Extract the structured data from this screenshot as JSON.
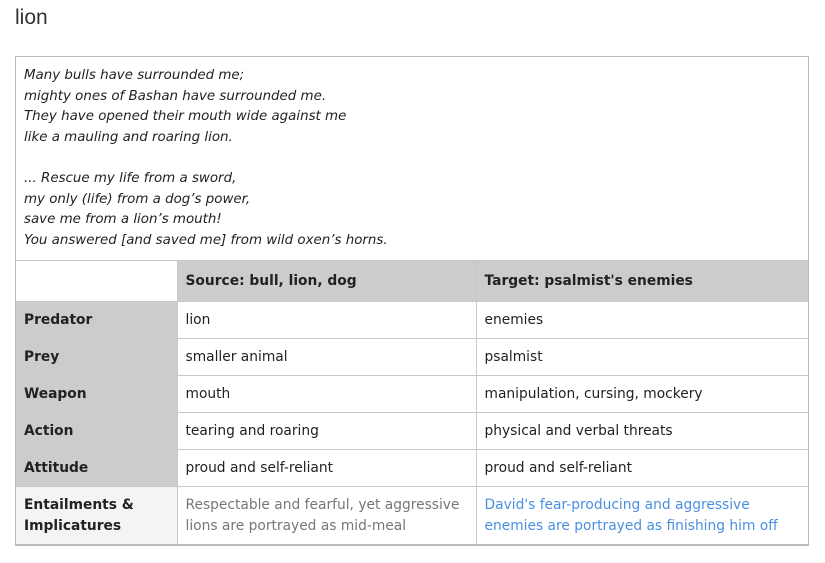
{
  "title": "lion",
  "quote": [
    "Many bulls have surrounded me;",
    "mighty ones of Bashan have surrounded me.",
    "They have opened their mouth wide against me",
    "like a mauling and roaring lion.",
    "",
    "... Rescue my life from a sword,",
    "my only (life) from a dog’s power,",
    "save me from a lion’s mouth!",
    "You answered [and saved me] from wild oxen’s horns."
  ],
  "table": {
    "headers": [
      "",
      "Source: bull, lion, dog",
      "Target: psalmist's enemies"
    ],
    "rows": [
      [
        "Predator",
        "lion",
        "enemies"
      ],
      [
        "Prey",
        "smaller animal",
        "psalmist"
      ],
      [
        "Weapon",
        "mouth",
        "manipulation, cursing, mockery"
      ],
      [
        "Action",
        "tearing and roaring",
        "physical and verbal threats"
      ],
      [
        "Attitude",
        "proud and self-reliant",
        "proud and self-reliant"
      ],
      [
        "Entailments & Implicatures",
        "Respectable and fearful, yet aggressive lions are portrayed as mid-meal",
        "David's fear-producing and aggressive enemies are portrayed as finishing him off"
      ]
    ]
  },
  "colors": {
    "header_bg": "#cccccc",
    "link_blue": "#4a90e2",
    "muted": "#777777"
  }
}
